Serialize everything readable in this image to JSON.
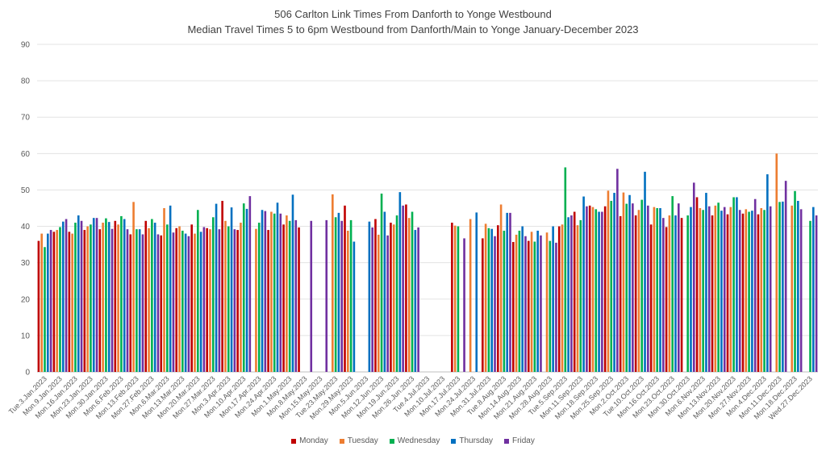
{
  "chart_data": {
    "type": "bar",
    "title": "506 Carlton Link Times From Danforth to Yonge Westbound",
    "subtitle": "Median Travel Times 5 to 6pm Westbound from Danforth/Main to Yonge January-December 2023",
    "xlabel": "",
    "ylabel": "",
    "ylim": [
      0,
      90
    ],
    "yticks": [
      0,
      10,
      20,
      30,
      40,
      50,
      60,
      70,
      80,
      90
    ],
    "grid": true,
    "legend_position": "bottom",
    "categories": [
      "Tue.3.Jan.2023",
      "Mon.9.Jan.2023",
      "Mon.16.Jan.2023",
      "Mon.23.Jan.2023",
      "Mon.30.Jan.2023",
      "Mon.6.Feb.2023",
      "Mon.13.Feb.2023",
      "Mon.27.Feb.2023",
      "Mon.6.Mar.2023",
      "Mon.13.Mar.2023",
      "Mon.20.Mar.2023",
      "Mon.27.Mar.2023",
      "Mon.3.Apr.2023",
      "Mon.10.Apr.2023",
      "Mon.17.Apr.2023",
      "Mon.24.Apr.2023",
      "Mon.1.May.2023",
      "Mon.8.May.2023",
      "Mon.15.May.2023",
      "Tue.23.May.2023",
      "Mon.29.May.2023",
      "Mon.5.Jun.2023",
      "Mon.12.Jun.2023",
      "Mon.19.Jun.2023",
      "Mon.26.Jun.2023",
      "Tue.4.Jul.2023",
      "Mon.10.Jul.2023",
      "Mon.17.Jul.2023",
      "Mon.24.Jul.2023",
      "Mon.31.Jul.2023",
      "Tue.8.Aug.2023",
      "Mon.14.Aug.2023",
      "Mon.21.Aug.2023",
      "Mon.28.Aug.2023",
      "Tue.5.Sep.2023",
      "Mon.11.Sep.2023",
      "Mon.18.Sep.2023",
      "Mon.25.Sep.2023",
      "Mon.2.Oct.2023",
      "Tue.10.Oct.2023",
      "Mon.16.Oct.2023",
      "Mon.23.Oct.2023",
      "Mon.30.Oct.2023",
      "Mon.6.Nov.2023",
      "Mon.13.Nov.2023",
      "Mon.20.Nov.2023",
      "Mon.27.Nov.2023",
      "Mon.4.Dec.2023",
      "Mon.11.Dec.2023",
      "Mon.18.Dec.2023",
      "Wed.27.Dec.2023"
    ],
    "series": [
      {
        "name": "Monday",
        "color": "#c00000",
        "values": [
          36,
          38.5,
          38.5,
          39,
          39.2,
          41.5,
          37.8,
          41.5,
          37.5,
          39.5,
          40.5,
          39.5,
          47,
          39,
          null,
          39,
          40.5,
          39.7,
          null,
          null,
          45.7,
          null,
          42,
          41,
          46,
          null,
          null,
          41,
          null,
          36.7,
          40.3,
          35.7,
          36,
          null,
          40,
          44,
          45.7,
          45.5,
          42.8,
          43,
          40.5,
          39.8,
          42.3,
          48,
          43,
          43.3,
          43.5,
          43.3,
          null,
          null,
          null
        ]
      },
      {
        "name": "Tuesday",
        "color": "#ed7d31",
        "values": [
          38,
          39,
          38,
          40,
          41,
          40.5,
          46.7,
          39.5,
          45,
          40,
          38,
          39.2,
          41.5,
          41,
          39.3,
          44,
          43,
          null,
          null,
          48.8,
          38.8,
          null,
          37.7,
          40.5,
          42.3,
          null,
          null,
          40.2,
          42,
          40.7,
          46,
          37.7,
          38.5,
          38.3,
          40.5,
          40.3,
          45.3,
          49.8,
          49.3,
          44.5,
          45.3,
          43,
          null,
          45,
          45.7,
          45.3,
          44.7,
          45,
          60,
          45.7,
          null
        ]
      },
      {
        "name": "Wednesday",
        "color": "#00b050",
        "values": [
          34.3,
          39.8,
          41,
          40.5,
          42.2,
          42.8,
          39.2,
          42,
          40.5,
          38.8,
          44.5,
          42.5,
          40,
          46.3,
          41,
          43.5,
          41.5,
          null,
          null,
          42.5,
          41.7,
          null,
          49,
          43,
          44,
          null,
          null,
          40,
          null,
          39.5,
          38.8,
          38.8,
          35.8,
          36,
          56.2,
          41.7,
          44.7,
          47,
          46.2,
          47.3,
          45,
          48.3,
          43,
          44.5,
          46.5,
          48,
          44,
          44.5,
          46.7,
          49.7,
          41.5
        ]
      },
      {
        "name": "Thursday",
        "color": "#0070c0",
        "values": [
          38,
          41.3,
          43,
          42.3,
          41.2,
          42,
          39.2,
          41,
          45.7,
          38,
          38.5,
          46.2,
          45.2,
          44.8,
          44.5,
          46.5,
          48.7,
          null,
          null,
          43.7,
          35.8,
          41.3,
          44,
          49.4,
          39,
          null,
          null,
          null,
          43.8,
          39.3,
          43.7,
          40,
          38.8,
          40,
          42.5,
          48.2,
          44,
          49.2,
          48.6,
          55,
          45,
          43,
          45.3,
          49.2,
          44.3,
          48,
          44.3,
          54.3,
          46.8,
          47,
          45.3
        ]
      },
      {
        "name": "Friday",
        "color": "#7030a0",
        "values": [
          39,
          42,
          41.5,
          42.3,
          39.3,
          39.2,
          37.8,
          37.8,
          38.3,
          37.3,
          39.8,
          39.2,
          39.2,
          48.3,
          44.2,
          43.5,
          41.7,
          41.5,
          41.7,
          41.5,
          null,
          39.7,
          37.5,
          45.7,
          39.7,
          null,
          null,
          36.7,
          null,
          37.3,
          43.7,
          37.3,
          37.5,
          35.5,
          43,
          45.5,
          44,
          55.8,
          46.3,
          45.7,
          42.3,
          46.3,
          52,
          45.5,
          45.3,
          44.5,
          47.5,
          45.5,
          52.5,
          44.7,
          43
        ]
      }
    ]
  }
}
